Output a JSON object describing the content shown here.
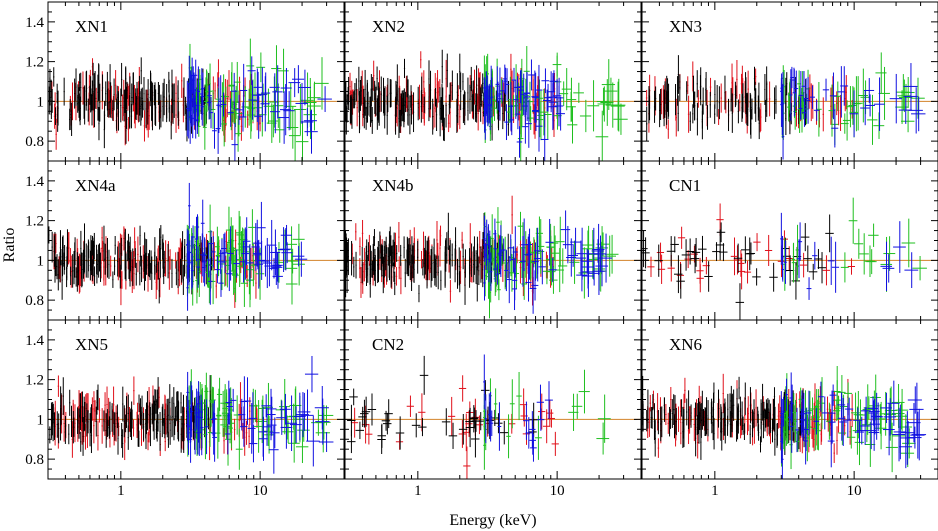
{
  "chart_data": {
    "type": "scatter",
    "layout": "3x3 grid of panels sharing axes",
    "xlabel": "Energy (keV)",
    "ylabel": "Ratio",
    "xscale": "log",
    "xlim": [
      0.3,
      40
    ],
    "ylim": [
      0.7,
      1.5
    ],
    "x_tick_labels": [
      "1",
      "10"
    ],
    "y_tick_labels": [
      "0.8",
      "1",
      "1.2",
      "1.4"
    ],
    "reference_line": {
      "y": 1,
      "color": "#d2822a"
    },
    "instrument_colors": {
      "black": "#000000",
      "red": "#e0101a",
      "green": "#1fbf1f",
      "blue": "#1010e0"
    },
    "panels": [
      {
        "label": "XN1",
        "density": "high",
        "green_span": [
          3,
          30
        ],
        "blue_span": [
          3,
          30
        ]
      },
      {
        "label": "XN2",
        "density": "high",
        "green_span": [
          3,
          30
        ],
        "blue_span": [
          3,
          12
        ]
      },
      {
        "label": "XN3",
        "density": "medium",
        "green_span": [
          3,
          30
        ],
        "blue_span": [
          3,
          30
        ]
      },
      {
        "label": "XN4a",
        "density": "high",
        "green_span": [
          3,
          20
        ],
        "blue_span": [
          3,
          20
        ]
      },
      {
        "label": "XN4b",
        "density": "high",
        "green_span": [
          3,
          25
        ],
        "blue_span": [
          3,
          25
        ]
      },
      {
        "label": "CN1",
        "density": "low",
        "green_span": [
          3,
          30
        ],
        "blue_span": [
          3,
          30
        ]
      },
      {
        "label": "XN5",
        "density": "high",
        "green_span": [
          3,
          30
        ],
        "blue_span": [
          3,
          30
        ]
      },
      {
        "label": "CN2",
        "density": "low",
        "green_span": [
          3,
          30
        ],
        "blue_span": [
          3,
          30
        ]
      },
      {
        "label": "XN6",
        "density": "high",
        "green_span": [
          3,
          25
        ],
        "blue_span": [
          3,
          30
        ]
      }
    ]
  }
}
